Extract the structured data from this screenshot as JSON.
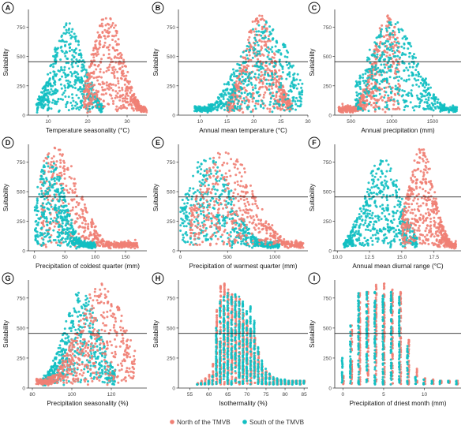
{
  "figure": {
    "legend": {
      "placement": "bottom-center",
      "entries": [
        {
          "label": "North of the TMVB",
          "color": "#F07F74"
        },
        {
          "label": "South of the TMVB",
          "color": "#12BFC2"
        }
      ]
    },
    "colors": {
      "north": "#F07F74",
      "south": "#12BFC2",
      "threshold_line": "#000000"
    }
  },
  "chart_data": [
    {
      "panel": "A",
      "type": "scatter",
      "xlabel": "Temperature seasonality (°C)",
      "ylabel": "Suitability",
      "x_ticks": [
        10,
        20,
        30
      ],
      "y_ticks": [
        0,
        250,
        500,
        750
      ],
      "xlim": [
        5,
        35
      ],
      "ylim": [
        0,
        900
      ],
      "threshold": 455,
      "series": [
        {
          "name": "North of the TMVB",
          "peak_x": 25,
          "x_range": [
            19,
            35
          ],
          "max_y": 870
        },
        {
          "name": "South of the TMVB",
          "peak_x": 15,
          "x_range": [
            7,
            24
          ],
          "max_y": 790
        }
      ]
    },
    {
      "panel": "B",
      "type": "scatter",
      "xlabel": "Annual mean temperature (°C)",
      "ylabel": "Suitability",
      "x_ticks": [
        10,
        15,
        20,
        25,
        30
      ],
      "y_ticks": [
        0,
        250,
        500,
        750
      ],
      "xlim": [
        6,
        30
      ],
      "ylim": [
        0,
        900
      ],
      "threshold": 455,
      "series": [
        {
          "name": "North of the TMVB",
          "peak_x": 21,
          "x_range": [
            15,
            27
          ],
          "max_y": 870
        },
        {
          "name": "South of the TMVB",
          "peak_x": 22,
          "x_range": [
            9,
            29
          ],
          "max_y": 800
        }
      ]
    },
    {
      "panel": "C",
      "type": "scatter",
      "xlabel": "Annual precipitation (mm)",
      "ylabel": "Suitability",
      "x_ticks": [
        500,
        1000,
        1500
      ],
      "y_ticks": [
        0,
        250,
        500,
        750
      ],
      "xlim": [
        300,
        1850
      ],
      "ylim": [
        0,
        900
      ],
      "threshold": 455,
      "series": [
        {
          "name": "North of the TMVB",
          "peak_x": 950,
          "x_range": [
            350,
            1100
          ],
          "max_y": 870
        },
        {
          "name": "South of the TMVB",
          "peak_x": 1000,
          "x_range": [
            550,
            1800
          ],
          "max_y": 820
        }
      ]
    },
    {
      "panel": "D",
      "type": "scatter",
      "xlabel": "Precipitation of coldest quarter (mm)",
      "ylabel": "Suitability",
      "x_ticks": [
        0,
        50,
        100,
        150
      ],
      "y_ticks": [
        0,
        250,
        500,
        750
      ],
      "xlim": [
        -10,
        185
      ],
      "ylim": [
        0,
        900
      ],
      "threshold": 455,
      "series": [
        {
          "name": "North of the TMVB",
          "peak_x": 35,
          "x_range": [
            10,
            170
          ],
          "max_y": 870
        },
        {
          "name": "South of the TMVB",
          "peak_x": 25,
          "x_range": [
            0,
            100
          ],
          "max_y": 800
        }
      ]
    },
    {
      "panel": "E",
      "type": "scatter",
      "xlabel": "Precipitation of warmest quarter (mm)",
      "ylabel": "Suitability",
      "x_ticks": [
        0,
        500,
        1000
      ],
      "y_ticks": [
        0,
        250,
        500,
        750
      ],
      "xlim": [
        -20,
        1350
      ],
      "ylim": [
        0,
        900
      ],
      "threshold": 455,
      "series": [
        {
          "name": "North of the TMVB",
          "peak_x": 480,
          "x_range": [
            100,
            1300
          ],
          "max_y": 870
        },
        {
          "name": "South of the TMVB",
          "peak_x": 300,
          "x_range": [
            0,
            1050
          ],
          "max_y": 800
        }
      ]
    },
    {
      "panel": "F",
      "type": "scatter",
      "xlabel": "Annual mean diurnal range (°C)",
      "ylabel": "Suitability",
      "x_ticks": [
        10.0,
        12.5,
        15.0,
        17.5
      ],
      "y_ticks": [
        0,
        250,
        500,
        750
      ],
      "xlim": [
        9.8,
        19.6
      ],
      "ylim": [
        0,
        900
      ],
      "threshold": 455,
      "series": [
        {
          "name": "North of the TMVB",
          "peak_x": 16.5,
          "x_range": [
            15.0,
            19.2
          ],
          "max_y": 870
        },
        {
          "name": "South of the TMVB",
          "peak_x": 13.5,
          "x_range": [
            10.5,
            16.2
          ],
          "max_y": 800
        }
      ]
    },
    {
      "panel": "G",
      "type": "scatter",
      "xlabel": "Precipitation seasonality (%)",
      "ylabel": "Suitability",
      "x_ticks": [
        80,
        100,
        120
      ],
      "y_ticks": [
        0,
        250,
        500,
        750
      ],
      "xlim": [
        78,
        138
      ],
      "ylim": [
        0,
        900
      ],
      "threshold": 455,
      "series": [
        {
          "name": "North of the TMVB",
          "peak_x": 115,
          "x_range": [
            82,
            132
          ],
          "max_y": 870
        },
        {
          "name": "South of the TMVB",
          "peak_x": 105,
          "x_range": [
            85,
            122
          ],
          "max_y": 820
        }
      ]
    },
    {
      "panel": "H",
      "type": "scatter",
      "xlabel": "Isothermality (%)",
      "ylabel": "Suitability",
      "x_ticks": [
        55,
        60,
        65,
        70,
        75,
        80,
        85
      ],
      "y_ticks": [
        0,
        250,
        500,
        750
      ],
      "xlim": [
        52,
        86
      ],
      "ylim": [
        0,
        900
      ],
      "threshold": 455,
      "x_discrete_from": 57,
      "x_discrete_to": 85,
      "envelope_north": [
        [
          57,
          40
        ],
        [
          58,
          60
        ],
        [
          59,
          80
        ],
        [
          60,
          110
        ],
        [
          61,
          200
        ],
        [
          62,
          650
        ],
        [
          63,
          850
        ],
        [
          64,
          870
        ],
        [
          65,
          820
        ],
        [
          66,
          780
        ],
        [
          67,
          760
        ],
        [
          68,
          740
        ],
        [
          69,
          620
        ],
        [
          70,
          560
        ],
        [
          71,
          480
        ],
        [
          72,
          420
        ],
        [
          73,
          300
        ],
        [
          74,
          180
        ],
        [
          75,
          140
        ],
        [
          76,
          100
        ],
        [
          77,
          80
        ],
        [
          78,
          70
        ],
        [
          79,
          60
        ],
        [
          80,
          60
        ],
        [
          81,
          60
        ],
        [
          82,
          60
        ],
        [
          83,
          60
        ],
        [
          84,
          60
        ],
        [
          85,
          60
        ]
      ],
      "envelope_south": [
        [
          57,
          30
        ],
        [
          58,
          40
        ],
        [
          59,
          40
        ],
        [
          60,
          60
        ],
        [
          61,
          100
        ],
        [
          62,
          500
        ],
        [
          63,
          720
        ],
        [
          64,
          760
        ],
        [
          65,
          790
        ],
        [
          66,
          760
        ],
        [
          67,
          780
        ],
        [
          68,
          760
        ],
        [
          69,
          720
        ],
        [
          70,
          640
        ],
        [
          71,
          680
        ],
        [
          72,
          560
        ],
        [
          73,
          340
        ],
        [
          74,
          230
        ],
        [
          75,
          160
        ],
        [
          76,
          120
        ],
        [
          77,
          90
        ],
        [
          78,
          80
        ],
        [
          79,
          70
        ],
        [
          80,
          70
        ],
        [
          81,
          60
        ],
        [
          82,
          60
        ],
        [
          83,
          60
        ],
        [
          84,
          60
        ],
        [
          85,
          60
        ]
      ]
    },
    {
      "panel": "I",
      "type": "scatter",
      "xlabel": "Precipitation of driest month (mm)",
      "ylabel": "Suitability",
      "x_ticks": [
        0,
        5,
        10
      ],
      "y_ticks": [
        0,
        250,
        500,
        750
      ],
      "xlim": [
        -1,
        14.5
      ],
      "ylim": [
        0,
        900
      ],
      "threshold": 455,
      "x_discrete_from": 0,
      "x_discrete_to": 14,
      "envelope_north": [
        [
          0,
          100
        ],
        [
          1,
          520
        ],
        [
          2,
          790
        ],
        [
          3,
          800
        ],
        [
          4,
          860
        ],
        [
          5,
          870
        ],
        [
          6,
          820
        ],
        [
          7,
          800
        ],
        [
          8,
          400
        ],
        [
          9,
          160
        ],
        [
          10,
          80
        ],
        [
          11,
          70
        ],
        [
          12,
          60
        ],
        [
          13,
          60
        ],
        [
          14,
          60
        ]
      ],
      "envelope_south": [
        [
          0,
          250
        ],
        [
          1,
          520
        ],
        [
          2,
          790
        ],
        [
          3,
          800
        ],
        [
          4,
          800
        ],
        [
          5,
          770
        ],
        [
          6,
          800
        ],
        [
          7,
          760
        ],
        [
          8,
          350
        ],
        [
          9,
          90
        ],
        [
          10,
          70
        ],
        [
          11,
          60
        ],
        [
          12,
          60
        ],
        [
          13,
          60
        ],
        [
          14,
          60
        ]
      ]
    }
  ]
}
